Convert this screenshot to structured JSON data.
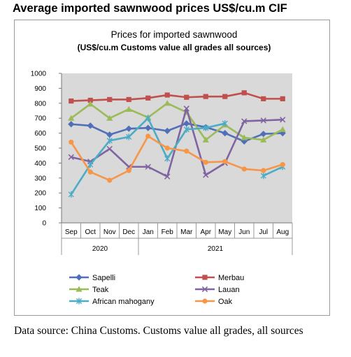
{
  "page": {
    "heading": "Average imported sawnwood prices US$/cu.m CIF",
    "caption": "Data source: China Customs. Customs value all grades, all sources"
  },
  "chart_data": {
    "type": "line",
    "title": "Prices for imported sawnwood",
    "subtitle": "(US$/cu.m Customs value all grades all sources)",
    "xlabel": "",
    "ylabel": "",
    "categories": [
      "Sep",
      "Oct",
      "Nov",
      "Dec",
      "Jan",
      "Feb",
      "Mar",
      "Apr",
      "May",
      "Jun",
      "Jul",
      "Aug"
    ],
    "year_groups": [
      {
        "label": "2020",
        "from": 0,
        "to": 3
      },
      {
        "label": "2021",
        "from": 4,
        "to": 11
      }
    ],
    "y_ticks": [
      0,
      100,
      200,
      300,
      400,
      500,
      600,
      700,
      800,
      900,
      1000
    ],
    "ylim": [
      0,
      1000
    ],
    "grid": false,
    "legend_position": "bottom",
    "plot_background": "#d9d9d9",
    "series": [
      {
        "name": "Sapelli",
        "color": "#4f6fb8",
        "marker": "diamond",
        "values": [
          660,
          650,
          590,
          630,
          635,
          615,
          665,
          640,
          600,
          545,
          595,
          600
        ]
      },
      {
        "name": "Merbau",
        "color": "#c0504d",
        "marker": "square",
        "values": [
          815,
          820,
          825,
          825,
          835,
          855,
          840,
          845,
          845,
          870,
          830,
          830
        ]
      },
      {
        "name": "Teak",
        "color": "#9bbb59",
        "marker": "triangle",
        "values": [
          700,
          795,
          700,
          760,
          705,
          800,
          740,
          555,
          655,
          570,
          555,
          625
        ]
      },
      {
        "name": "Lauan",
        "color": "#8064a2",
        "marker": "x",
        "values": [
          440,
          410,
          495,
          375,
          375,
          310,
          765,
          320,
          400,
          680,
          685,
          690
        ]
      },
      {
        "name": "African mahogany",
        "color": "#4bacc6",
        "marker": "star",
        "values": [
          190,
          390,
          550,
          575,
          700,
          430,
          625,
          635,
          665,
          null,
          315,
          375
        ]
      },
      {
        "name": "Oak",
        "color": "#f79646",
        "marker": "circle",
        "values": [
          540,
          340,
          285,
          350,
          580,
          500,
          480,
          405,
          410,
          360,
          350,
          390
        ]
      }
    ]
  }
}
